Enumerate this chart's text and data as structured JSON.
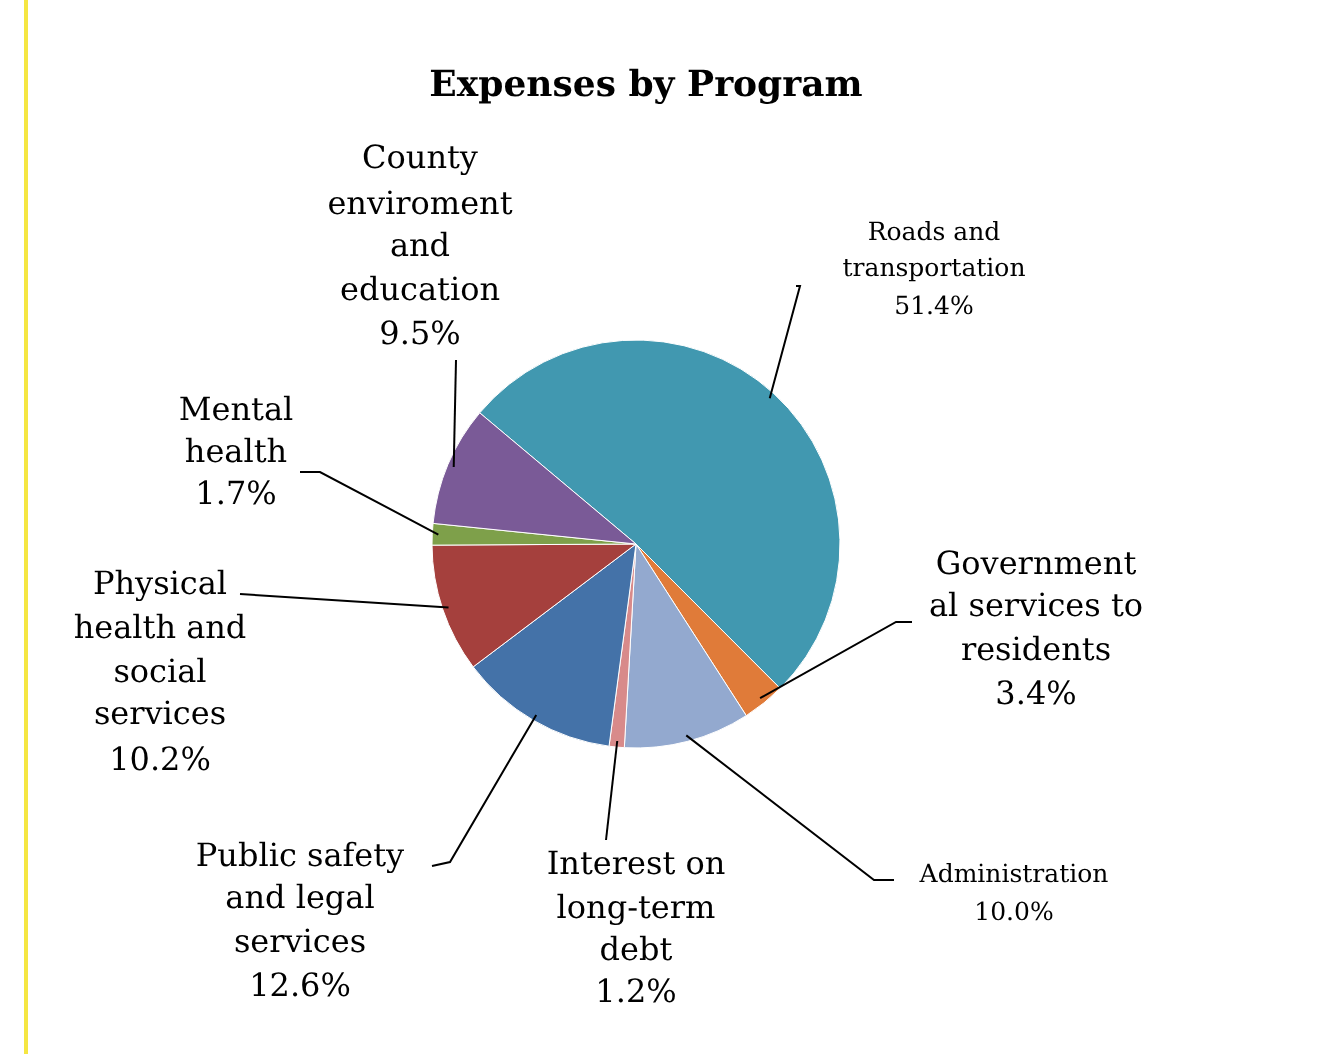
{
  "chart_data": {
    "type": "pie",
    "title": "Expenses by Program",
    "categories": [
      "Roads and transportation",
      "Governmental services to residents",
      "Administration",
      "Interest on long-term debt",
      "Public safety and legal services",
      "Physical health and social services",
      "Mental health",
      "County enviroment and education"
    ],
    "values": [
      51.4,
      3.4,
      10.0,
      1.2,
      12.6,
      10.2,
      1.7,
      9.5
    ],
    "value_labels": [
      "51.4%",
      "3.4%",
      "10.0%",
      "1.2%",
      "12.6%",
      "10.2%",
      "1.7%",
      "9.5%"
    ],
    "colors": [
      "#4198b0",
      "#e07b39",
      "#93a9cf",
      "#d88a8a",
      "#4472a8",
      "#a5403d",
      "#7ea04a",
      "#7a5a97"
    ]
  }
}
